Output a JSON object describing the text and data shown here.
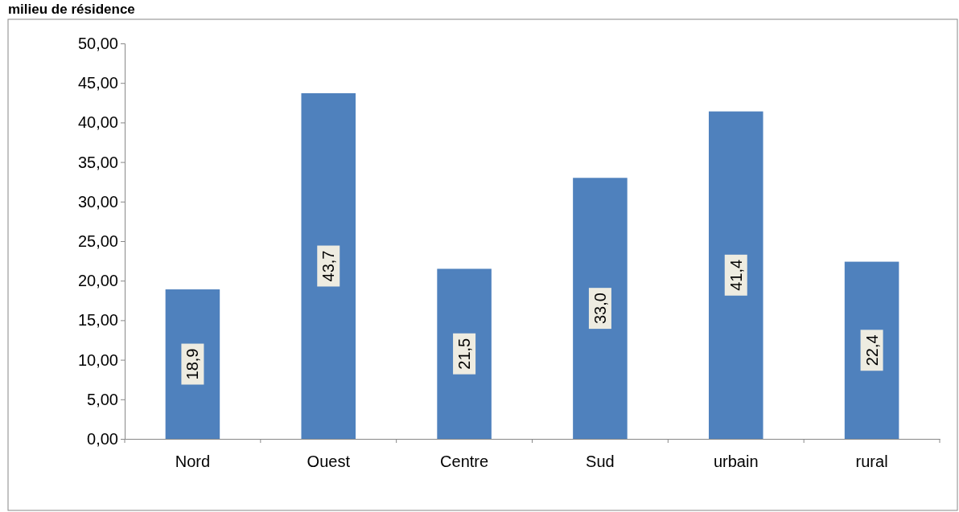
{
  "chart_data": {
    "type": "bar",
    "title": "milieu de résidence",
    "categories": [
      "Nord",
      "Ouest",
      "Centre",
      "Sud",
      "urbain",
      "rural"
    ],
    "values": [
      18.9,
      43.7,
      21.5,
      33.0,
      41.4,
      22.4
    ],
    "value_labels": [
      "18,9",
      "43,7",
      "21,5",
      "33,0",
      "41,4",
      "22,4"
    ],
    "color": "#4f81bd",
    "ylim": [
      0,
      50
    ],
    "yticks": [
      {
        "value": 0,
        "label": "0,00"
      },
      {
        "value": 5,
        "label": "5,00"
      },
      {
        "value": 10,
        "label": "10,00"
      },
      {
        "value": 15,
        "label": "15,00"
      },
      {
        "value": 20,
        "label": "20,00"
      },
      {
        "value": 25,
        "label": "25,00"
      },
      {
        "value": 30,
        "label": "30,00"
      },
      {
        "value": 35,
        "label": "35,00"
      },
      {
        "value": 40,
        "label": "40,00"
      },
      {
        "value": 45,
        "label": "45,00"
      },
      {
        "value": 50,
        "label": "50,00"
      }
    ]
  }
}
